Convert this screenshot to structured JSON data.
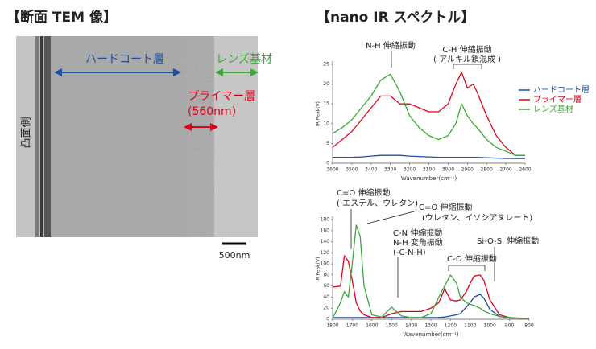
{
  "tem": {
    "title": "【断面 TEM 像】",
    "hardcoat_label": "ハードコート層",
    "lens_label": "レンズ基材",
    "primer_label": "プライマー層",
    "primer_thickness": "(560nm)",
    "side_label": "凸面側",
    "scale_bar": "500nm"
  },
  "spectra_title": "【nano IR スペクトル】",
  "chart_data": [
    {
      "type": "line",
      "x_label": "Wavenumber(cm⁻¹)",
      "y_label": "IR Peak(V)",
      "xlim": [
        3600,
        2600
      ],
      "xticks": [
        3600,
        3500,
        3400,
        3300,
        3200,
        3100,
        3000,
        2900,
        2800,
        2700,
        2600
      ],
      "ylim": [
        0,
        25
      ],
      "yticks": [
        0,
        5,
        10,
        15,
        20,
        25
      ],
      "legend": "right",
      "annotations": [
        "N-H 伸縮振動",
        "C-H 伸縮振動",
        "( アルキル鎖混成 )"
      ],
      "x": [
        3600,
        3550,
        3500,
        3450,
        3400,
        3350,
        3300,
        3250,
        3200,
        3150,
        3100,
        3050,
        3000,
        2960,
        2930,
        2900,
        2870,
        2850,
        2800,
        2750,
        2700,
        2650,
        2600
      ],
      "series": [
        {
          "name": "ハードコート層",
          "color": "#1f4e9c",
          "values": [
            1.5,
            1.5,
            1.5,
            1.6,
            1.8,
            2,
            2,
            2,
            1.8,
            1.7,
            1.6,
            1.5,
            1.5,
            1.5,
            1.5,
            1.5,
            1.5,
            1.5,
            1.4,
            1.3,
            1.2,
            1.2,
            1.2
          ]
        },
        {
          "name": "プライマー層",
          "color": "#e0001b",
          "values": [
            4,
            6,
            8,
            11,
            14,
            17,
            17,
            15,
            15,
            14,
            13,
            13,
            15,
            20,
            23,
            19,
            20,
            18,
            12,
            7,
            4,
            2,
            2
          ]
        },
        {
          "name": "レンズ基材",
          "color": "#3aa935",
          "values": [
            7.5,
            9,
            11,
            14,
            17,
            21,
            22.5,
            18,
            12,
            9,
            7,
            6,
            7,
            10,
            15,
            12,
            10,
            9,
            6,
            4,
            3,
            2,
            2
          ]
        }
      ]
    },
    {
      "type": "line",
      "x_label": "Wavenumber(cm⁻¹)",
      "y_label": "IR Peak(V)",
      "xlim": [
        1800,
        800
      ],
      "xticks": [
        1800,
        1700,
        1600,
        1500,
        1400,
        1300,
        1200,
        1100,
        1000,
        900,
        800
      ],
      "ylim": [
        0,
        180
      ],
      "yticks": [
        0,
        20,
        40,
        60,
        80,
        100,
        120,
        140,
        160,
        180
      ],
      "annotations": [
        "C=O 伸縮振動",
        "( エステル、ウレタン)",
        "C=O 伸縮振動",
        "(ウレタン、イソシアヌレート)",
        "C-N 伸縮振動",
        "N-H 変角振動",
        "(-C-N-H)",
        "C-O 伸縮振動",
        "Si-O-Si 伸縮振動"
      ],
      "x": [
        1800,
        1760,
        1740,
        1720,
        1700,
        1680,
        1660,
        1640,
        1600,
        1550,
        1500,
        1450,
        1400,
        1350,
        1300,
        1260,
        1230,
        1200,
        1170,
        1150,
        1120,
        1100,
        1080,
        1050,
        1030,
        1000,
        950,
        900,
        850,
        800
      ],
      "series": [
        {
          "color": "#1f4e9c",
          "values": [
            3,
            3,
            3,
            3,
            3,
            3,
            3,
            3,
            3,
            3,
            3,
            3,
            3,
            3,
            3,
            3,
            4,
            6,
            8,
            10,
            22,
            30,
            40,
            45,
            38,
            18,
            5,
            2,
            2,
            2
          ]
        },
        {
          "color": "#e0001b",
          "values": [
            58,
            60,
            115,
            105,
            70,
            30,
            15,
            8,
            3,
            3,
            10,
            14,
            14,
            14,
            20,
            30,
            55,
            35,
            33,
            35,
            50,
            65,
            78,
            80,
            70,
            35,
            8,
            3,
            2,
            2
          ]
        },
        {
          "color": "#3aa935",
          "values": [
            2,
            30,
            50,
            40,
            100,
            170,
            150,
            60,
            8,
            4,
            22,
            6,
            3,
            3,
            10,
            40,
            60,
            80,
            65,
            40,
            30,
            27,
            25,
            20,
            15,
            10,
            5,
            3,
            2,
            2
          ]
        }
      ]
    }
  ]
}
